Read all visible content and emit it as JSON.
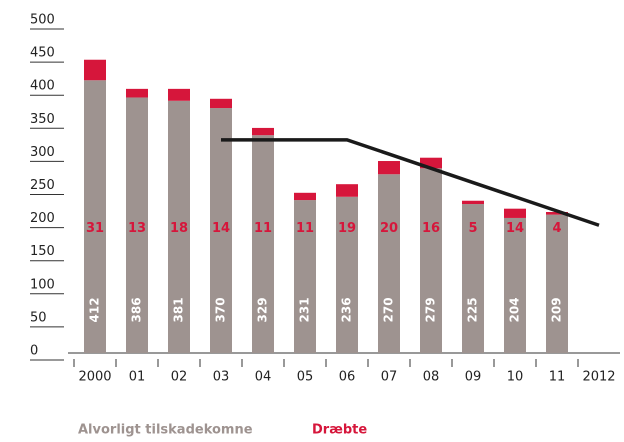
{
  "chart_data": {
    "type": "bar",
    "stacked": true,
    "categories": [
      "2000",
      "01",
      "02",
      "03",
      "04",
      "05",
      "06",
      "07",
      "08",
      "09",
      "10",
      "11",
      "2012"
    ],
    "series": [
      {
        "name": "Alvorligt tilskadekomne",
        "color": "#9e9390",
        "values": [
          412,
          386,
          381,
          370,
          329,
          231,
          236,
          270,
          279,
          225,
          204,
          209,
          null
        ]
      },
      {
        "name": "Dræbte",
        "color": "#d6163b",
        "values": [
          31,
          13,
          18,
          14,
          11,
          11,
          19,
          20,
          16,
          5,
          14,
          4,
          null
        ]
      }
    ],
    "target_line": {
      "color": "#1a1a1a",
      "values": [
        null,
        null,
        null,
        322,
        322,
        322,
        322,
        300.5,
        279,
        257.5,
        236,
        214.5,
        193
      ]
    },
    "ylim": [
      0,
      500
    ],
    "yticks": [
      0,
      50,
      100,
      150,
      200,
      250,
      300,
      350,
      400,
      450,
      500
    ]
  }
}
